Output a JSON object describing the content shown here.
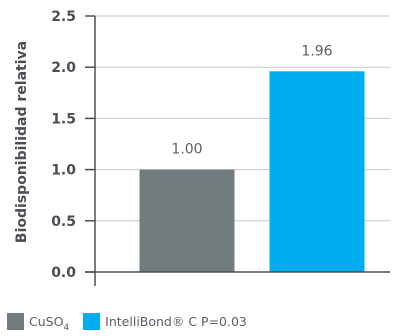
{
  "chart_data": {
    "type": "bar",
    "categories": [
      "CuSO4",
      "IntelliBond® C"
    ],
    "values": [
      1.0,
      1.96
    ],
    "value_labels": [
      "1.00",
      "1.96"
    ],
    "colors": [
      "#717c7f",
      "#00aeef"
    ],
    "ylabel": "Biodisponibilidad relativa",
    "xlabel": "",
    "ylim": [
      0,
      2.5
    ],
    "yticks": [
      0.0,
      0.5,
      1.0,
      1.5,
      2.0,
      2.5
    ],
    "ytick_labels": [
      "0.0",
      "0.5",
      "1.0",
      "1.5",
      "2.0",
      "2.5"
    ],
    "grid": "horizontal",
    "legend_position": "bottom-left"
  },
  "legend": {
    "items": [
      {
        "label": "CuSO",
        "subscript": "4",
        "color": "#717c7f"
      },
      {
        "label": "IntelliBond® C P=0.03",
        "color": "#00aeef"
      }
    ]
  }
}
